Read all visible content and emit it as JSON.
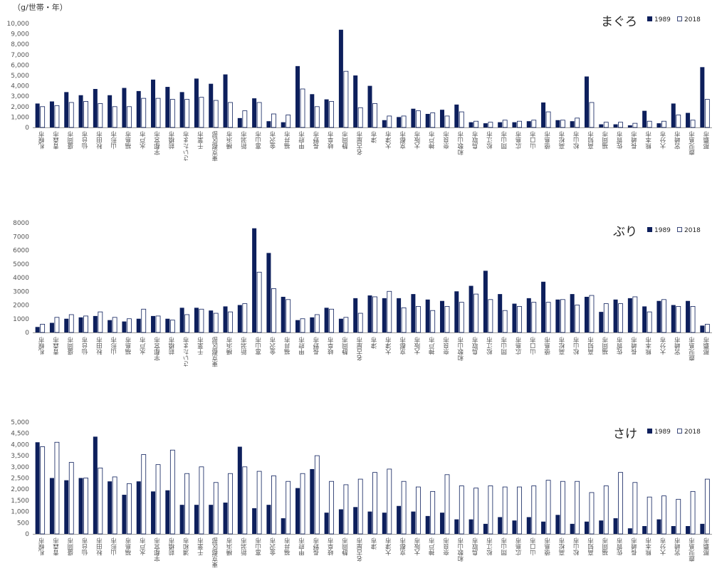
{
  "unit_label": "（g/世帯・年）",
  "colors": {
    "s1989": "#0d1f5c",
    "s2018": "#ffffff",
    "stroke": "#0d1f5c"
  },
  "chart_data": [
    {
      "type": "bar",
      "title": "まぐろ",
      "ylim": [
        0,
        10000
      ],
      "yticks": [
        "0",
        "1,000",
        "2,000",
        "3,000",
        "4,000",
        "5,000",
        "6,000",
        "7,000",
        "8,000",
        "9,000",
        "10,000"
      ],
      "categories": [
        "札幌市",
        "青森市",
        "盛岡市",
        "仙台市",
        "秋田市",
        "山形市",
        "福島市",
        "水戸市",
        "宇都宮市",
        "前橋市",
        "さいたま市",
        "千葉市",
        "東京都区部",
        "横浜市",
        "新潟市",
        "富山市",
        "金沢市",
        "福井市",
        "甲府市",
        "長野市",
        "岐阜市",
        "静岡市",
        "名古屋市",
        "津市",
        "大津市",
        "京都市",
        "大阪市",
        "神戸市",
        "奈良市",
        "和歌山市",
        "鳥取市",
        "松江市",
        "岡山市",
        "広島市",
        "山口市",
        "徳島市",
        "高松市",
        "松山市",
        "高知市",
        "福岡市",
        "佐賀市",
        "長崎市",
        "熊本市",
        "大分市",
        "宮崎市",
        "鹿児島市",
        "那覇市"
      ],
      "series": [
        {
          "name": "1989",
          "values": [
            2300,
            2500,
            3400,
            3100,
            3700,
            3100,
            3800,
            3500,
            4600,
            3900,
            3400,
            4700,
            4200,
            5100,
            900,
            2800,
            600,
            500,
            5900,
            3200,
            2700,
            9400,
            5000,
            4000,
            700,
            1000,
            1800,
            1300,
            1700,
            2200,
            500,
            400,
            500,
            500,
            600,
            2400,
            700,
            600,
            4900,
            300,
            300,
            200,
            1600,
            400,
            2300,
            1400,
            5800
          ]
        },
        {
          "name": "2018",
          "values": [
            2000,
            2100,
            2400,
            2500,
            2300,
            2000,
            2000,
            2800,
            2800,
            2700,
            2700,
            2900,
            2600,
            2400,
            1600,
            2400,
            1300,
            1200,
            3700,
            2000,
            2500,
            5400,
            1900,
            2300,
            1100,
            1100,
            1600,
            1400,
            1100,
            1500,
            600,
            500,
            700,
            600,
            700,
            1500,
            700,
            900,
            2400,
            500,
            500,
            400,
            600,
            600,
            1200,
            700,
            2700
          ]
        }
      ]
    },
    {
      "type": "bar",
      "title": "ぶり",
      "ylim": [
        0,
        8000
      ],
      "yticks": [
        "0",
        "1000",
        "2000",
        "3000",
        "4000",
        "5000",
        "6000",
        "7000",
        "8000"
      ],
      "categories": [
        "札幌市",
        "青森市",
        "盛岡市",
        "仙台市",
        "秋田市",
        "山形市",
        "福島市",
        "水戸市",
        "宇都宮市",
        "前橋市",
        "さいたま市",
        "千葉市",
        "東京都区部",
        "横浜市",
        "新潟市",
        "富山市",
        "金沢市",
        "福井市",
        "甲府市",
        "長野市",
        "岐阜市",
        "静岡市",
        "名古屋市",
        "津市",
        "大津市",
        "京都市",
        "大阪市",
        "神戸市",
        "奈良市",
        "和歌山市",
        "鳥取市",
        "松江市",
        "岡山市",
        "広島市",
        "山口市",
        "徳島市",
        "高松市",
        "松山市",
        "高知市",
        "福岡市",
        "佐賀市",
        "長崎市",
        "熊本市",
        "大分市",
        "宮崎市",
        "鹿児島市",
        "那覇市"
      ],
      "series": [
        {
          "name": "1989",
          "values": [
            400,
            700,
            1000,
            1100,
            1200,
            900,
            800,
            1000,
            1200,
            1000,
            1800,
            1800,
            1600,
            1900,
            2000,
            7600,
            5800,
            2600,
            900,
            1100,
            1800,
            1000,
            2500,
            2700,
            2500,
            2500,
            2800,
            2400,
            2300,
            3000,
            3400,
            4500,
            2800,
            2100,
            2500,
            3700,
            2400,
            2800,
            2600,
            1500,
            2400,
            2500,
            1900,
            2300,
            2000,
            2300,
            500
          ]
        },
        {
          "name": "2018",
          "values": [
            600,
            1100,
            1300,
            1200,
            1500,
            1100,
            1000,
            1700,
            1200,
            900,
            1300,
            1700,
            1400,
            1500,
            2100,
            4400,
            3200,
            2400,
            1000,
            1300,
            1700,
            1100,
            1400,
            2600,
            3000,
            1800,
            1900,
            1600,
            1900,
            2200,
            2800,
            2400,
            1600,
            1900,
            2200,
            2200,
            2400,
            2000,
            2700,
            2100,
            2100,
            2600,
            1500,
            2400,
            1900,
            1900,
            600
          ]
        }
      ]
    },
    {
      "type": "bar",
      "title": "さけ",
      "ylim": [
        0,
        5000
      ],
      "yticks": [
        "0",
        "500",
        "1,000",
        "1,500",
        "2,000",
        "2,500",
        "3,000",
        "3,500",
        "4,000",
        "4,500",
        "5,000"
      ],
      "categories": [
        "札幌市",
        "青森市",
        "盛岡市",
        "仙台市",
        "秋田市",
        "山形市",
        "福島市",
        "水戸市",
        "宇都宮市",
        "前橋市",
        "浦和市",
        "千葉市",
        "東京都区部",
        "横浜市",
        "新潟市",
        "富山市",
        "金沢市",
        "福井市",
        "甲府市",
        "長野市",
        "岐阜市",
        "静岡市",
        "名古屋市",
        "津市",
        "大津市",
        "京都市",
        "大阪市",
        "神戸市",
        "奈良市",
        "和歌山市",
        "鳥取市",
        "松江市",
        "岡山市",
        "広島市",
        "山口市",
        "徳島市",
        "高松市",
        "松山市",
        "高知市",
        "福岡市",
        "佐賀市",
        "長崎市",
        "熊本市",
        "大分市",
        "宮崎市",
        "鹿児島市",
        "那覇市"
      ],
      "series": [
        {
          "name": "1989",
          "values": [
            4100,
            2500,
            2400,
            2500,
            4350,
            2350,
            1750,
            2350,
            1900,
            1950,
            1300,
            1300,
            1300,
            1400,
            3900,
            1150,
            1300,
            700,
            2050,
            2900,
            950,
            1100,
            1200,
            1000,
            950,
            1250,
            1000,
            800,
            950,
            650,
            650,
            450,
            750,
            600,
            750,
            550,
            850,
            450,
            550,
            600,
            700,
            250,
            350,
            650,
            350,
            350,
            450
          ]
        },
        {
          "name": "2018",
          "values": [
            3900,
            4100,
            3200,
            2500,
            2950,
            2550,
            2250,
            3550,
            3100,
            3750,
            2700,
            3000,
            2300,
            2700,
            3000,
            2800,
            2600,
            2350,
            2700,
            3500,
            2350,
            2200,
            2450,
            2750,
            2900,
            2350,
            2100,
            1900,
            2650,
            2150,
            2050,
            2150,
            2100,
            2100,
            2150,
            2400,
            2350,
            2350,
            1850,
            2150,
            2750,
            2300,
            1650,
            1700,
            1550,
            1900,
            2450
          ]
        }
      ]
    }
  ]
}
